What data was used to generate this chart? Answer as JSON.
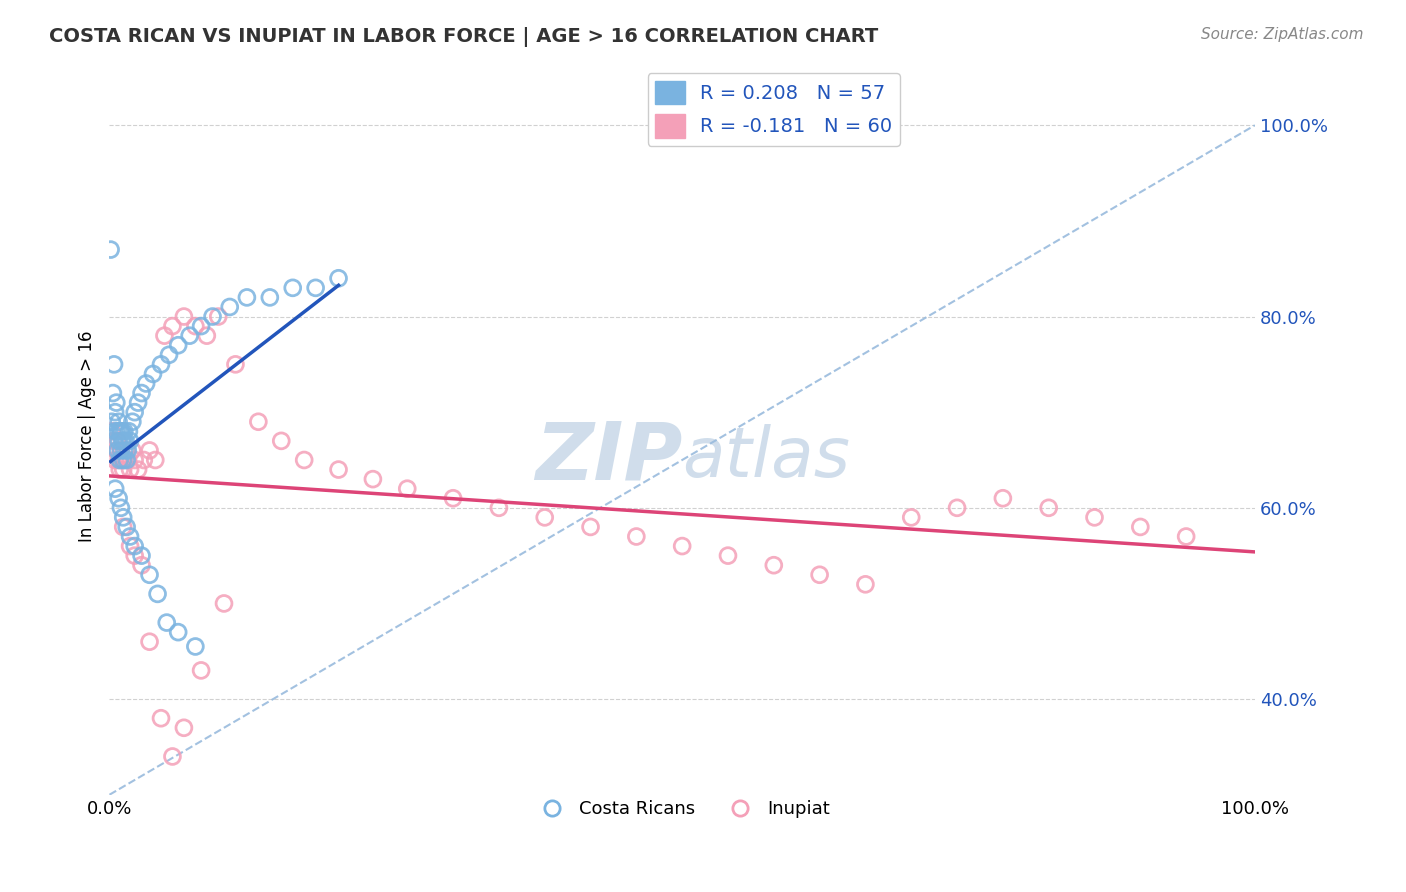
{
  "title": "COSTA RICAN VS INUPIAT IN LABOR FORCE | AGE > 16 CORRELATION CHART",
  "source_text": "Source: ZipAtlas.com",
  "ylabel": "In Labor Force | Age > 16",
  "blue_color": "#7ab3e0",
  "pink_color": "#f4a0b8",
  "blue_line_color": "#2255bb",
  "pink_line_color": "#dd4477",
  "dashed_line_color": "#99bbdd",
  "background_color": "#ffffff",
  "watermark_color": "#c8d8e8",
  "xlim": [
    0.0,
    1.0
  ],
  "ylim": [
    0.3,
    1.05
  ],
  "yticks": [
    0.4,
    0.6,
    0.8,
    1.0
  ],
  "ytick_labels": [
    "40.0%",
    "60.0%",
    "80.0%",
    "100.0%"
  ],
  "xticks": [
    0.0,
    1.0
  ],
  "xtick_labels": [
    "0.0%",
    "100.0%"
  ],
  "legend_top_blue": "R = 0.208   N = 57",
  "legend_top_pink": "R = -0.181   N = 60",
  "legend_bottom": [
    "Costa Ricans",
    "Inupiat"
  ],
  "blue_x": [
    0.001,
    0.002,
    0.003,
    0.004,
    0.005,
    0.005,
    0.006,
    0.007,
    0.007,
    0.008,
    0.008,
    0.009,
    0.009,
    0.01,
    0.01,
    0.011,
    0.011,
    0.012,
    0.012,
    0.013,
    0.013,
    0.014,
    0.015,
    0.016,
    0.017,
    0.018,
    0.02,
    0.022,
    0.025,
    0.028,
    0.032,
    0.038,
    0.045,
    0.052,
    0.06,
    0.07,
    0.08,
    0.09,
    0.105,
    0.12,
    0.14,
    0.16,
    0.18,
    0.2,
    0.005,
    0.008,
    0.01,
    0.012,
    0.015,
    0.018,
    0.022,
    0.028,
    0.035,
    0.042,
    0.05,
    0.06,
    0.075
  ],
  "blue_y": [
    0.87,
    0.69,
    0.72,
    0.75,
    0.7,
    0.68,
    0.71,
    0.68,
    0.66,
    0.69,
    0.67,
    0.68,
    0.65,
    0.66,
    0.68,
    0.67,
    0.68,
    0.65,
    0.67,
    0.66,
    0.68,
    0.67,
    0.65,
    0.66,
    0.68,
    0.67,
    0.69,
    0.7,
    0.71,
    0.72,
    0.73,
    0.74,
    0.75,
    0.76,
    0.77,
    0.78,
    0.79,
    0.8,
    0.81,
    0.82,
    0.82,
    0.83,
    0.83,
    0.84,
    0.62,
    0.61,
    0.6,
    0.59,
    0.58,
    0.57,
    0.56,
    0.55,
    0.53,
    0.51,
    0.48,
    0.47,
    0.455
  ],
  "pink_x": [
    0.002,
    0.004,
    0.005,
    0.006,
    0.007,
    0.008,
    0.009,
    0.01,
    0.011,
    0.012,
    0.013,
    0.015,
    0.016,
    0.018,
    0.02,
    0.022,
    0.025,
    0.03,
    0.035,
    0.04,
    0.048,
    0.055,
    0.065,
    0.075,
    0.085,
    0.095,
    0.11,
    0.13,
    0.15,
    0.17,
    0.2,
    0.23,
    0.26,
    0.3,
    0.34,
    0.38,
    0.42,
    0.46,
    0.5,
    0.54,
    0.58,
    0.62,
    0.66,
    0.7,
    0.74,
    0.78,
    0.82,
    0.86,
    0.9,
    0.94,
    0.012,
    0.018,
    0.022,
    0.028,
    0.035,
    0.045,
    0.055,
    0.065,
    0.08,
    0.1
  ],
  "pink_y": [
    0.68,
    0.67,
    0.65,
    0.66,
    0.67,
    0.65,
    0.64,
    0.66,
    0.65,
    0.64,
    0.65,
    0.66,
    0.65,
    0.64,
    0.66,
    0.65,
    0.64,
    0.65,
    0.66,
    0.65,
    0.78,
    0.79,
    0.8,
    0.79,
    0.78,
    0.8,
    0.75,
    0.69,
    0.67,
    0.65,
    0.64,
    0.63,
    0.62,
    0.61,
    0.6,
    0.59,
    0.58,
    0.57,
    0.56,
    0.55,
    0.54,
    0.53,
    0.52,
    0.59,
    0.6,
    0.61,
    0.6,
    0.59,
    0.58,
    0.57,
    0.58,
    0.56,
    0.55,
    0.54,
    0.46,
    0.38,
    0.34,
    0.37,
    0.43,
    0.5
  ]
}
